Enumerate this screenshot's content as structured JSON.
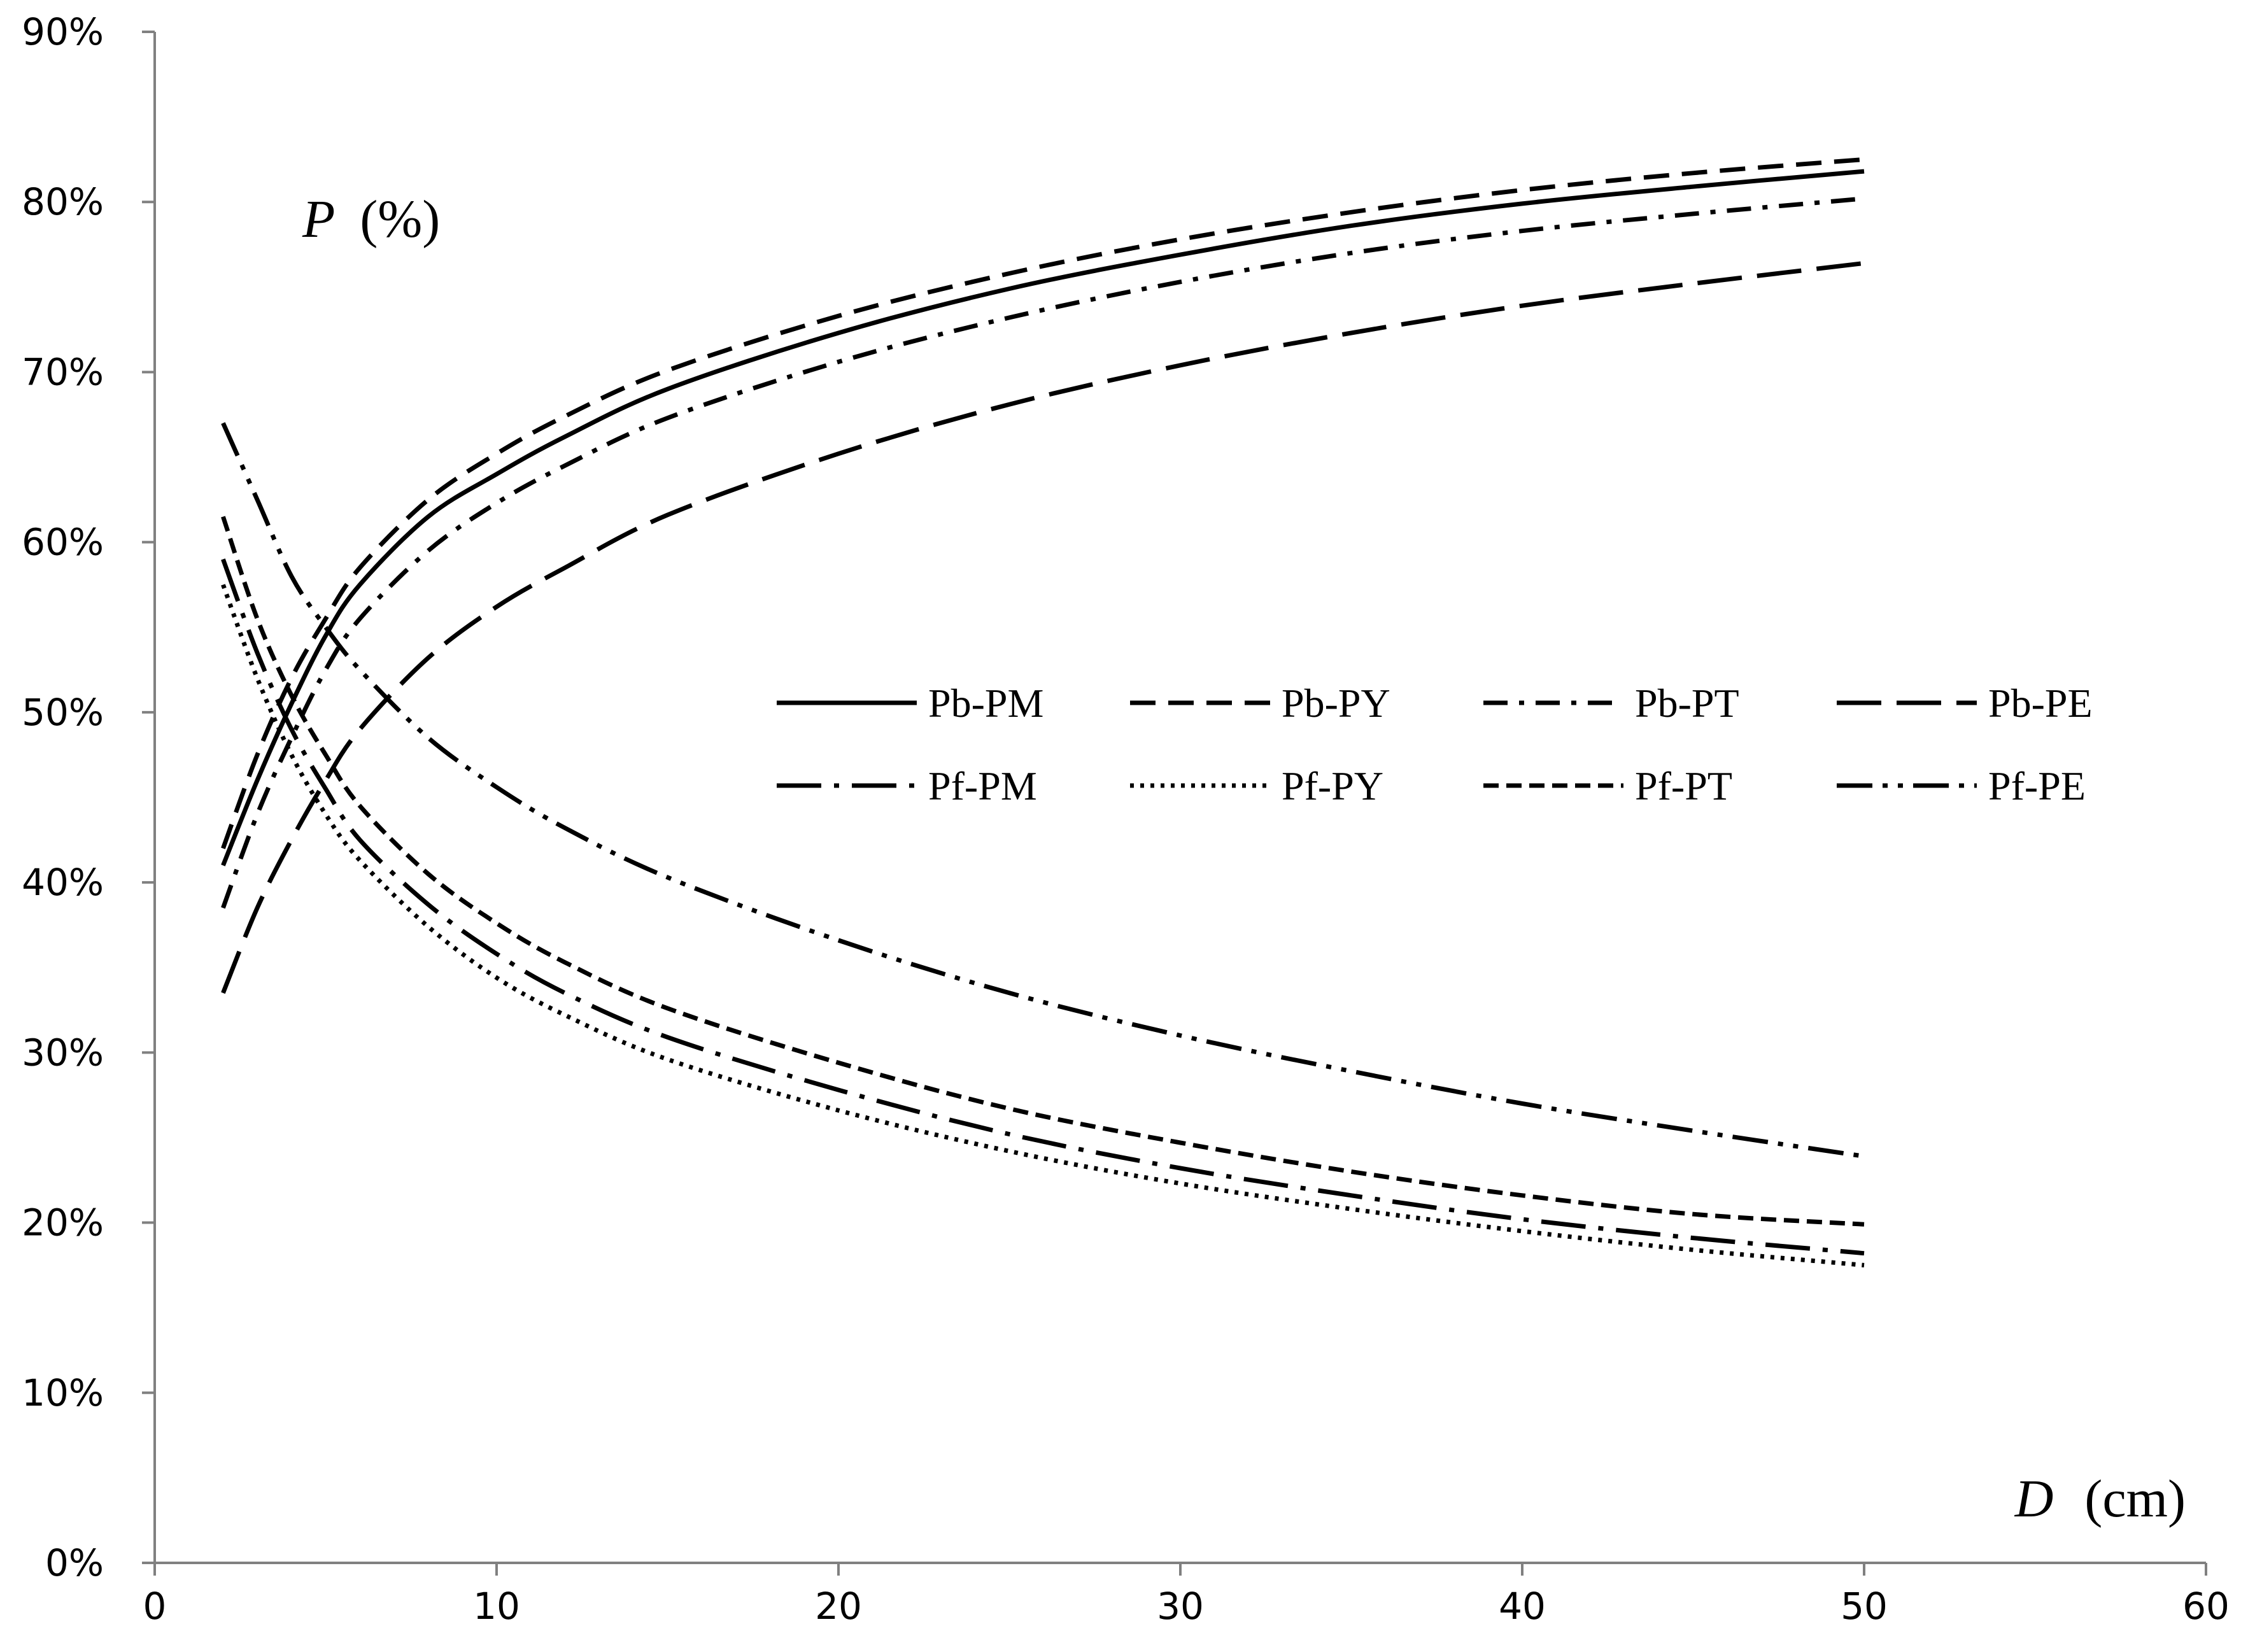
{
  "chart_data": {
    "type": "line",
    "title": "",
    "ylabel_var": "P",
    "ylabel_unit": "(%)",
    "xlabel_var": "D",
    "xlabel_unit": "(cm)",
    "xlim": [
      0,
      60
    ],
    "ylim": [
      0,
      90
    ],
    "x_ticks": [
      "0",
      "10",
      "20",
      "30",
      "40",
      "50",
      "60"
    ],
    "y_ticks": [
      "0%",
      "10%",
      "20%",
      "30%",
      "40%",
      "50%",
      "60%",
      "70%",
      "80%",
      "90%"
    ],
    "grid": false,
    "legend_placement": "center-right",
    "x": [
      2,
      3,
      4,
      5,
      6,
      8,
      10,
      12,
      15,
      20,
      25,
      30,
      35,
      40,
      45,
      50
    ],
    "series": [
      {
        "name": "Pb-PM",
        "style": "solid",
        "values": [
          41,
          46,
          50.5,
          54.5,
          57.5,
          61.5,
          64,
          66.2,
          69,
          72.3,
          74.9,
          76.9,
          78.6,
          79.9,
          80.9,
          81.8
        ]
      },
      {
        "name": "Pb-PY",
        "style": "dash",
        "values": [
          42,
          47.5,
          52,
          55.5,
          58.5,
          62.5,
          65.2,
          67.4,
          70.1,
          73.3,
          75.8,
          77.8,
          79.4,
          80.7,
          81.7,
          82.5
        ]
      },
      {
        "name": "Pb-PT",
        "style": "dashdot",
        "values": [
          38.5,
          44,
          48.5,
          52.5,
          55.5,
          59.5,
          62.3,
          64.5,
          67.3,
          70.6,
          73.2,
          75.3,
          77,
          78.3,
          79.3,
          80.2
        ]
      },
      {
        "name": "Pb-PE",
        "style": "longdash",
        "values": [
          33.5,
          38.5,
          42.5,
          46,
          49,
          53.2,
          56.2,
          58.5,
          61.6,
          65.2,
          68.1,
          70.4,
          72.3,
          73.9,
          75.2,
          76.4
        ]
      },
      {
        "name": "Pf-PM",
        "style": "longdashdot",
        "values": [
          59,
          53.5,
          49,
          45.5,
          42.5,
          38.7,
          35.8,
          33.5,
          30.9,
          27.8,
          25.2,
          23.2,
          21.6,
          20.2,
          19.1,
          18.2
        ]
      },
      {
        "name": "Pf-PY",
        "style": "dot",
        "values": [
          57.5,
          52,
          47.5,
          44,
          41.3,
          37.4,
          34.4,
          32.2,
          29.6,
          26.6,
          24.2,
          22.3,
          20.8,
          19.5,
          18.4,
          17.5
        ]
      },
      {
        "name": "Pf-PT",
        "style": "shortdash",
        "values": [
          61.5,
          55.5,
          51,
          47.5,
          44.5,
          40.5,
          37.6,
          35.3,
          32.6,
          29.4,
          26.7,
          24.7,
          23,
          21.6,
          20.5,
          19.9
        ]
      },
      {
        "name": "Pf-PE",
        "style": "dashdotdot",
        "values": [
          67,
          62.5,
          58,
          55,
          52.5,
          48.5,
          45.6,
          43.2,
          40.3,
          36.6,
          33.5,
          31,
          28.9,
          27,
          25.4,
          23.9
        ]
      }
    ]
  }
}
